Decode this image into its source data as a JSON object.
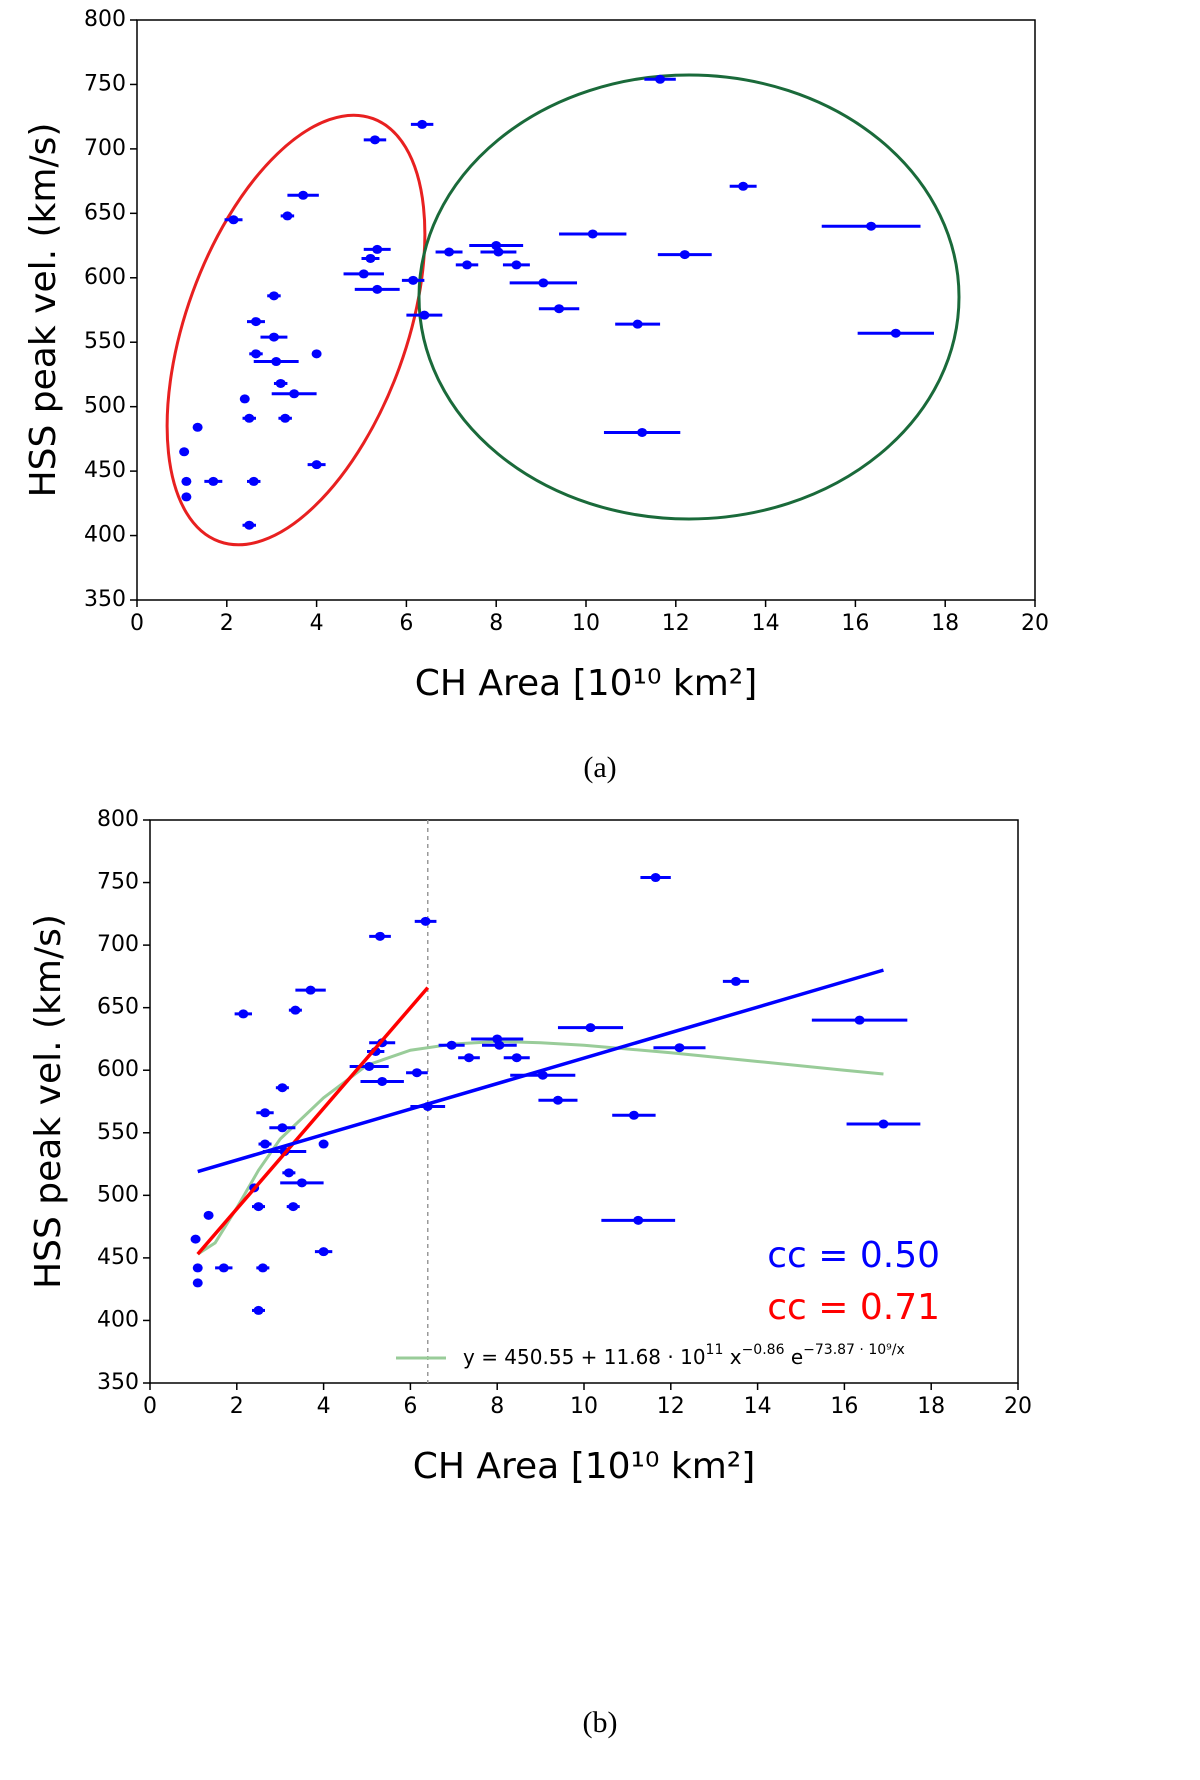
{
  "chart_data": [
    {
      "type": "scatter",
      "color": "#0000ff",
      "x": [
        1.05,
        1.1,
        1.1,
        1.35,
        1.7,
        2.15,
        2.4,
        2.5,
        2.5,
        2.6,
        2.65,
        2.65,
        3.05,
        3.05,
        3.1,
        3.2,
        3.35,
        3.3,
        3.5,
        3.7,
        4.0,
        4.0,
        5.05,
        5.2,
        5.3,
        5.35,
        5.35,
        6.15,
        6.35,
        6.4,
        6.95,
        7.35,
        8.0,
        8.05,
        8.45,
        9.05,
        9.4,
        10.15,
        11.15,
        11.25,
        11.65,
        12.2,
        13.5,
        16.35,
        16.9
      ],
      "y": [
        465,
        442,
        430,
        484,
        442,
        645,
        506,
        491,
        408,
        442,
        541,
        566,
        586,
        554,
        535,
        518,
        648,
        491,
        510,
        664,
        541,
        455,
        603,
        615,
        707,
        622,
        591,
        598,
        719,
        571,
        620,
        610,
        625,
        620,
        610,
        596,
        576,
        634,
        564,
        480,
        754,
        618,
        671,
        640,
        557
      ],
      "xerr": [
        0.05,
        0.05,
        0.05,
        0.05,
        0.2,
        0.2,
        0.1,
        0.15,
        0.15,
        0.15,
        0.15,
        0.2,
        0.15,
        0.3,
        0.5,
        0.15,
        0.15,
        0.15,
        0.5,
        0.35,
        0.1,
        0.2,
        0.45,
        0.2,
        0.25,
        0.3,
        0.5,
        0.25,
        0.25,
        0.4,
        0.3,
        0.25,
        0.6,
        0.4,
        0.3,
        0.75,
        0.45,
        0.75,
        0.5,
        0.85,
        0.35,
        0.6,
        0.3,
        1.1,
        0.85
      ],
      "xlim": [
        0,
        20
      ],
      "xticks": [
        0,
        2,
        4,
        6,
        8,
        10,
        12,
        14,
        16,
        18,
        20
      ],
      "ylim": [
        350,
        800
      ],
      "yticks": [
        350,
        400,
        450,
        500,
        550,
        600,
        650,
        700,
        750,
        800
      ],
      "xlabel": "CH Area [10¹⁰ km²]",
      "ylabel": "HSS peak vel. (km/s)",
      "caption": "(a)"
    },
    {
      "type": "scatter",
      "color": "#0000ff",
      "x": [
        1.05,
        1.1,
        1.1,
        1.35,
        1.7,
        2.15,
        2.4,
        2.5,
        2.5,
        2.6,
        2.65,
        2.65,
        3.05,
        3.05,
        3.1,
        3.2,
        3.35,
        3.3,
        3.5,
        3.7,
        4.0,
        4.0,
        5.05,
        5.2,
        5.3,
        5.35,
        5.35,
        6.15,
        6.35,
        6.4,
        6.95,
        7.35,
        8.0,
        8.05,
        8.45,
        9.05,
        9.4,
        10.15,
        11.15,
        11.25,
        11.65,
        12.2,
        13.5,
        16.35,
        16.9
      ],
      "y": [
        465,
        442,
        430,
        484,
        442,
        645,
        506,
        491,
        408,
        442,
        541,
        566,
        586,
        554,
        535,
        518,
        648,
        491,
        510,
        664,
        541,
        455,
        603,
        615,
        707,
        622,
        591,
        598,
        719,
        571,
        620,
        610,
        625,
        620,
        610,
        596,
        576,
        634,
        564,
        480,
        754,
        618,
        671,
        640,
        557
      ],
      "xerr": [
        0.05,
        0.05,
        0.05,
        0.05,
        0.2,
        0.2,
        0.1,
        0.15,
        0.15,
        0.15,
        0.15,
        0.2,
        0.15,
        0.3,
        0.5,
        0.15,
        0.15,
        0.15,
        0.5,
        0.35,
        0.1,
        0.2,
        0.45,
        0.2,
        0.25,
        0.3,
        0.5,
        0.25,
        0.25,
        0.4,
        0.3,
        0.25,
        0.6,
        0.4,
        0.3,
        0.75,
        0.45,
        0.75,
        0.5,
        0.85,
        0.35,
        0.6,
        0.3,
        1.1,
        0.85
      ],
      "xlim": [
        0,
        20
      ],
      "xticks": [
        0,
        2,
        4,
        6,
        8,
        10,
        12,
        14,
        16,
        18,
        20
      ],
      "ylim": [
        350,
        800
      ],
      "yticks": [
        350,
        400,
        450,
        500,
        550,
        600,
        650,
        700,
        750,
        800
      ],
      "xlabel": "CH Area [10¹⁰ km²]",
      "ylabel": "HSS peak vel. (km/s)",
      "caption": "(b)",
      "vline": 6.4,
      "fit": {
        "color": "#99cc99",
        "x": [
          1.1,
          1.5,
          2,
          2.5,
          3,
          4,
          5,
          6,
          7,
          8,
          9,
          10,
          12,
          14,
          16,
          16.9
        ],
        "y": [
          453,
          462,
          490,
          520,
          545,
          578,
          604,
          616,
          621,
          623,
          622,
          620,
          614,
          607,
          600,
          597
        ],
        "label": [
          "y = 450.55 + 11.68 · 10",
          "11",
          " x",
          "−0.86",
          " e",
          "−73.87 · 10⁹/x"
        ]
      },
      "lines": [
        {
          "color": "#ff0000",
          "x": [
            1.1,
            6.4
          ],
          "y": [
            453,
            666
          ]
        },
        {
          "color": "#0000ff",
          "x": [
            1.1,
            16.9
          ],
          "y": [
            519,
            680
          ]
        }
      ],
      "annotations": [
        {
          "text": "cc = 0.50",
          "color": "#0000ff"
        },
        {
          "text": "cc = 0.71",
          "color": "#ff0000"
        }
      ]
    }
  ]
}
